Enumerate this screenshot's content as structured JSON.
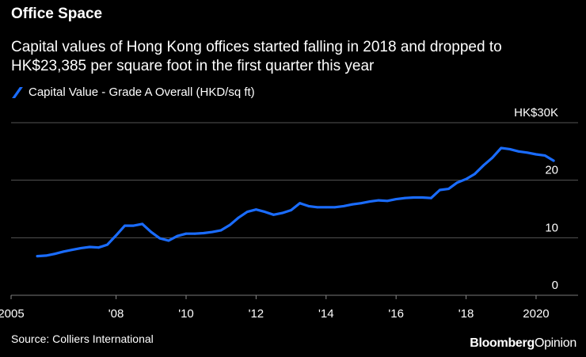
{
  "header": {
    "title": "Office Space",
    "subtitle": "Capital values of Hong Kong offices started falling in 2018 and dropped to HK$23,385 per square foot in the first quarter this year"
  },
  "footer": {
    "source": "Source: Colliers International",
    "brand_main": "Bloomberg",
    "brand_suffix": "Opinion"
  },
  "colors": {
    "background": "#000000",
    "line": "#1a6cff",
    "grid": "#555555",
    "text": "#ffffff"
  },
  "chart_data": {
    "type": "line",
    "title": "Office Space",
    "subtitle": "Capital values of Hong Kong offices started falling in 2018 and dropped to HK$23,385 per square foot in the first quarter this year",
    "xlabel": "",
    "ylabel": "",
    "x_range": [
      2005,
      2021.2
    ],
    "ylim": [
      0,
      30
    ],
    "y_ticks": [
      {
        "value": 30,
        "label": "HK$30K"
      },
      {
        "value": 20,
        "label": "20"
      },
      {
        "value": 10,
        "label": "10"
      },
      {
        "value": 0,
        "label": "0"
      }
    ],
    "x_ticks": [
      {
        "value": 2005,
        "label": "2005"
      },
      {
        "value": 2008,
        "label": "'08"
      },
      {
        "value": 2010,
        "label": "'10"
      },
      {
        "value": 2012,
        "label": "'12"
      },
      {
        "value": 2014,
        "label": "'14"
      },
      {
        "value": 2016,
        "label": "'16"
      },
      {
        "value": 2018,
        "label": "'18"
      },
      {
        "value": 2020,
        "label": "2020"
      }
    ],
    "grid": true,
    "legend_position": "top-left",
    "series": [
      {
        "name": "Capital Value - Grade A Overall (HKD/sq ft)",
        "points": [
          [
            2005.75,
            6.8
          ],
          [
            2006.0,
            6.9
          ],
          [
            2006.25,
            7.2
          ],
          [
            2006.5,
            7.6
          ],
          [
            2006.75,
            7.9
          ],
          [
            2007.0,
            8.2
          ],
          [
            2007.25,
            8.4
          ],
          [
            2007.5,
            8.3
          ],
          [
            2007.75,
            8.8
          ],
          [
            2008.0,
            10.4
          ],
          [
            2008.25,
            12.1
          ],
          [
            2008.5,
            12.1
          ],
          [
            2008.75,
            12.4
          ],
          [
            2009.0,
            11.0
          ],
          [
            2009.25,
            9.9
          ],
          [
            2009.5,
            9.5
          ],
          [
            2009.75,
            10.3
          ],
          [
            2010.0,
            10.7
          ],
          [
            2010.25,
            10.7
          ],
          [
            2010.5,
            10.8
          ],
          [
            2010.75,
            11.0
          ],
          [
            2011.0,
            11.3
          ],
          [
            2011.25,
            12.2
          ],
          [
            2011.5,
            13.5
          ],
          [
            2011.75,
            14.5
          ],
          [
            2012.0,
            14.9
          ],
          [
            2012.25,
            14.5
          ],
          [
            2012.5,
            14.0
          ],
          [
            2012.75,
            14.3
          ],
          [
            2013.0,
            14.8
          ],
          [
            2013.25,
            16.0
          ],
          [
            2013.5,
            15.5
          ],
          [
            2013.75,
            15.3
          ],
          [
            2014.0,
            15.3
          ],
          [
            2014.25,
            15.3
          ],
          [
            2014.5,
            15.5
          ],
          [
            2014.75,
            15.8
          ],
          [
            2015.0,
            16.0
          ],
          [
            2015.25,
            16.3
          ],
          [
            2015.5,
            16.5
          ],
          [
            2015.75,
            16.4
          ],
          [
            2016.0,
            16.7
          ],
          [
            2016.25,
            16.9
          ],
          [
            2016.5,
            17.0
          ],
          [
            2016.75,
            17.0
          ],
          [
            2017.0,
            16.9
          ],
          [
            2017.25,
            18.3
          ],
          [
            2017.5,
            18.5
          ],
          [
            2017.75,
            19.6
          ],
          [
            2018.0,
            20.2
          ],
          [
            2018.25,
            21.1
          ],
          [
            2018.5,
            22.6
          ],
          [
            2018.75,
            23.9
          ],
          [
            2019.0,
            25.6
          ],
          [
            2019.25,
            25.4
          ],
          [
            2019.5,
            25.0
          ],
          [
            2019.75,
            24.8
          ],
          [
            2020.0,
            24.5
          ],
          [
            2020.25,
            24.3
          ],
          [
            2020.5,
            23.4
          ]
        ]
      }
    ]
  }
}
